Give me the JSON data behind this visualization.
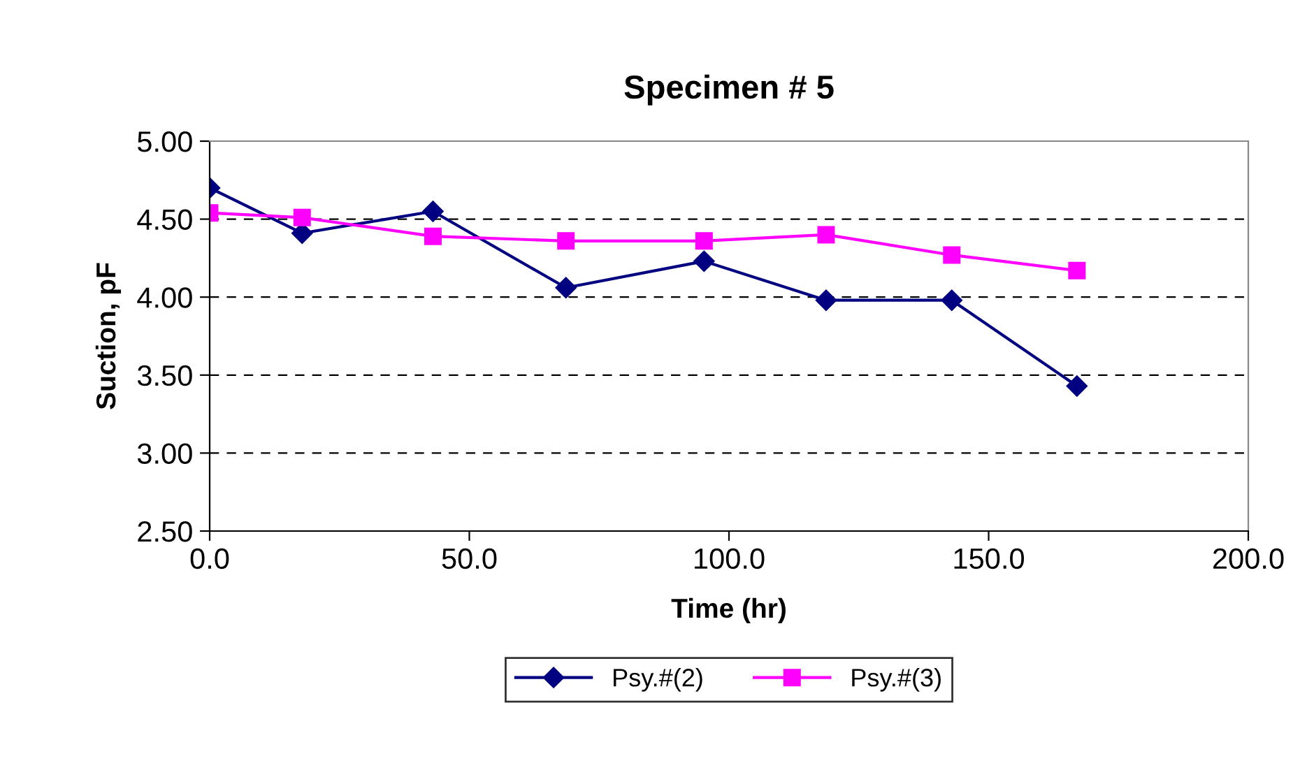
{
  "chart_data": {
    "type": "line",
    "title": "Specimen # 5",
    "xlabel": "Time (hr)",
    "ylabel": "Suction, pF",
    "x": [
      0,
      17.8,
      43,
      68.6,
      95.2,
      118.7,
      142.9,
      167
    ],
    "series": [
      {
        "name": "Psy.#(2)",
        "color": "#000080",
        "marker": "diamond",
        "values": [
          4.7,
          4.41,
          4.55,
          4.06,
          4.23,
          3.98,
          3.98,
          3.43
        ]
      },
      {
        "name": "Psy.#(3)",
        "color": "#ff00ff",
        "marker": "square",
        "values": [
          4.54,
          4.51,
          4.39,
          4.36,
          4.36,
          4.4,
          4.27,
          4.17
        ]
      }
    ],
    "xlim": [
      0,
      200
    ],
    "xticks": [
      {
        "value": 0,
        "label": "0.0"
      },
      {
        "value": 50,
        "label": "50.0"
      },
      {
        "value": 100,
        "label": "100.0"
      },
      {
        "value": 150,
        "label": "150.0"
      },
      {
        "value": 200,
        "label": "200.0"
      }
    ],
    "ylim": [
      2.5,
      5.0
    ],
    "yticks": [
      {
        "value": 2.5,
        "label": "2.50"
      },
      {
        "value": 3.0,
        "label": "3.00"
      },
      {
        "value": 3.5,
        "label": "3.50"
      },
      {
        "value": 4.0,
        "label": "4.00"
      },
      {
        "value": 4.5,
        "label": "4.50"
      },
      {
        "value": 5.0,
        "label": "5.00"
      }
    ],
    "grid": "y",
    "legend": "bottom",
    "line_style": "solid"
  }
}
